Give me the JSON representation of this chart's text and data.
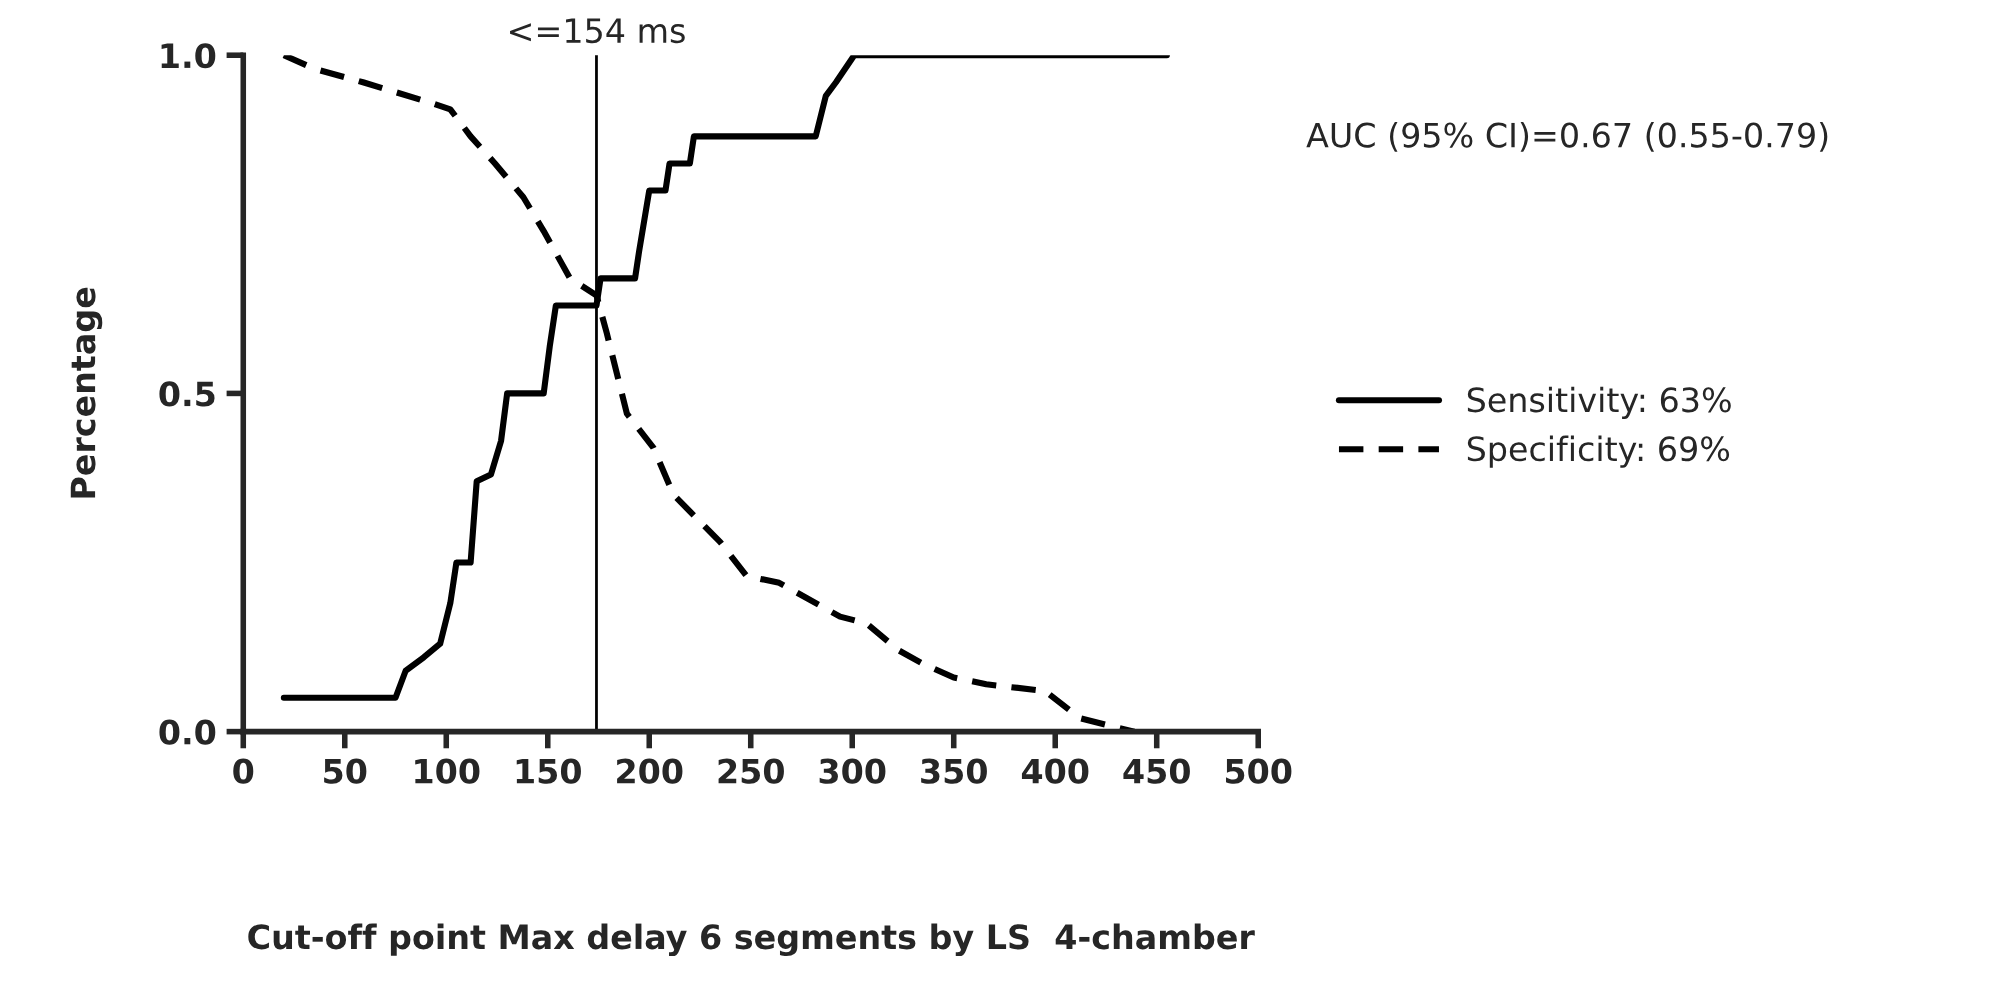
{
  "chart_data": {
    "type": "line",
    "xlabel": "Cut-off point Max delay 6 segments by LS  4-chamber",
    "ylabel": "Percentage",
    "xlim": [
      0,
      500
    ],
    "xticks": [
      0,
      50,
      100,
      150,
      200,
      250,
      300,
      350,
      400,
      450,
      500
    ],
    "ylim": [
      0,
      1
    ],
    "yticks": [
      {
        "value": 0,
        "label": "0.0"
      },
      {
        "value": 0.5,
        "label": "0.5"
      },
      {
        "value": 1,
        "label": "1.0"
      }
    ],
    "series": [
      {
        "name": "Sensitivity: 63%",
        "color": "#000000",
        "line_style": "solid",
        "x": [
          20,
          75,
          80,
          89,
          97,
          102,
          105,
          112,
          115,
          122,
          127,
          130,
          148,
          151,
          154,
          174,
          176,
          193,
          195,
          200,
          208,
          210,
          220,
          222,
          282,
          287,
          292,
          301,
          455
        ],
        "values": [
          0.05,
          0.05,
          0.09,
          0.11,
          0.13,
          0.19,
          0.25,
          0.25,
          0.37,
          0.38,
          0.43,
          0.5,
          0.5,
          0.57,
          0.63,
          0.63,
          0.67,
          0.67,
          0.71,
          0.8,
          0.8,
          0.84,
          0.84,
          0.88,
          0.88,
          0.94,
          0.96,
          1.0,
          1.0
        ]
      },
      {
        "name": "Specificity: 69%",
        "color": "#000000",
        "line_style": "dashed",
        "x": [
          20,
          35,
          59,
          92,
          102,
          112,
          124,
          138,
          148,
          161,
          174,
          179,
          189,
          202,
          212,
          235,
          248,
          264,
          294,
          307,
          323,
          335,
          350,
          366,
          395,
          412,
          425,
          439
        ],
        "values": [
          1.0,
          0.98,
          0.96,
          0.93,
          0.92,
          0.88,
          0.84,
          0.79,
          0.74,
          0.67,
          0.645,
          0.59,
          0.47,
          0.42,
          0.35,
          0.28,
          0.23,
          0.22,
          0.17,
          0.16,
          0.12,
          0.1,
          0.08,
          0.07,
          0.06,
          0.02,
          0.01,
          0.0
        ]
      }
    ],
    "ref_lines": [
      {
        "axis": "x",
        "value": 174,
        "color": "#000000"
      }
    ],
    "annotations": [
      {
        "text": "<=154 ms",
        "x": 174,
        "y": 1
      },
      "AUC (95% CI)=0.67 (0.55-0.79)"
    ],
    "legend": "right",
    "grid": false
  }
}
